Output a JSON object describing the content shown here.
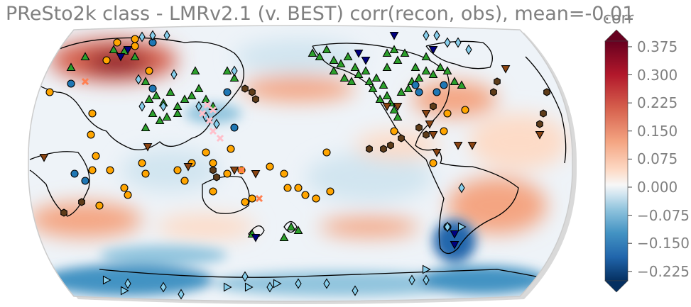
{
  "title": "PReSto2k class - LMRv2.1 (v. BEST) corr(recon, obs), mean=-0.01",
  "colorbar": {
    "label": "corr",
    "ticks": [
      "0.375",
      "0.300",
      "0.225",
      "0.150",
      "0.075",
      "0.000",
      "−0.075",
      "−0.150",
      "−0.225"
    ],
    "tick_values": [
      0.375,
      0.3,
      0.225,
      0.15,
      0.075,
      0.0,
      -0.075,
      -0.15,
      -0.225
    ],
    "range": [
      -0.25,
      0.39
    ],
    "extend": "both",
    "colors": [
      "#053061",
      "#2166ac",
      "#4393c3",
      "#92c5de",
      "#d1e5f0",
      "#f7f7f7",
      "#fddbc7",
      "#f4a582",
      "#d6604d",
      "#b2182b",
      "#67001f"
    ]
  },
  "legend_colors": {
    "coral": "#ffa500",
    "tree_ring": "#2ca02c",
    "ice_core": "#87ceeb",
    "lake_sediment": "#8b4513",
    "speleothem": "#5f3d1a",
    "marine_sediment": "#1f77b4",
    "documents": "#ff7f50",
    "sclerosponge": "#ffc0cb",
    "bivalve": "#000080"
  },
  "chart_data": {
    "type": "map",
    "projection": "Robinson",
    "central_longitude": 180,
    "field": "corr(recon, obs)",
    "mean": -0.01,
    "colorbar_range": [
      -0.25,
      0.39
    ]
  }
}
